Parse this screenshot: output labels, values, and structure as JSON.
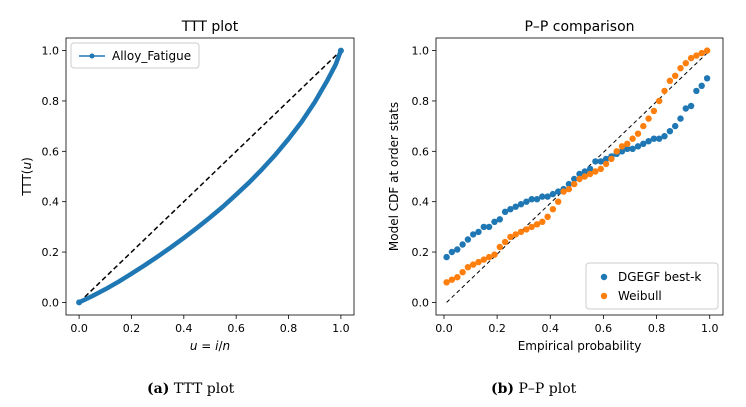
{
  "chart_data": [
    {
      "type": "line",
      "title": "TTT plot",
      "xlabel": "u = i/n",
      "ylabel": "TTT(u)",
      "xlim": [
        -0.05,
        1.05
      ],
      "ylim": [
        -0.05,
        1.05
      ],
      "xticks": [
        "0.0",
        "0.2",
        "0.4",
        "0.6",
        "0.8",
        "1.0"
      ],
      "yticks": [
        "0.0",
        "0.2",
        "0.4",
        "0.6",
        "0.8",
        "1.0"
      ],
      "legend": {
        "placement": "top-left",
        "entries": [
          "Alloy_Fatigue"
        ]
      },
      "series": [
        {
          "name": "Alloy_Fatigue",
          "color": "#1f77b4",
          "x": [
            0.0,
            0.05,
            0.1,
            0.15,
            0.2,
            0.25,
            0.3,
            0.35,
            0.4,
            0.45,
            0.5,
            0.55,
            0.6,
            0.65,
            0.7,
            0.75,
            0.8,
            0.85,
            0.9,
            0.95,
            0.98,
            1.0
          ],
          "y": [
            0.0,
            0.025,
            0.052,
            0.082,
            0.114,
            0.147,
            0.182,
            0.218,
            0.256,
            0.296,
            0.337,
            0.381,
            0.428,
            0.477,
            0.53,
            0.587,
            0.649,
            0.717,
            0.795,
            0.885,
            0.945,
            1.0
          ]
        },
        {
          "name": "reference",
          "style": "dashed",
          "color": "#000000",
          "x": [
            0,
            1
          ],
          "y": [
            0,
            1
          ]
        }
      ]
    },
    {
      "type": "scatter",
      "title": "P–P comparison",
      "xlabel": "Empirical probability",
      "ylabel": "Model CDF at order stats",
      "xlim": [
        -0.03,
        1.05
      ],
      "ylim": [
        -0.05,
        1.05
      ],
      "xticks": [
        "0.0",
        "0.2",
        "0.4",
        "0.6",
        "0.8",
        "1.0"
      ],
      "yticks": [
        "0.0",
        "0.2",
        "0.4",
        "0.6",
        "0.8",
        "1.0"
      ],
      "legend": {
        "placement": "bottom-right",
        "entries": [
          "DGEGF best-k",
          "Weibull"
        ]
      },
      "reference_line": {
        "x": [
          0.01,
          1.0
        ],
        "y": [
          0.0,
          1.0
        ],
        "style": "dashed"
      },
      "series": [
        {
          "name": "DGEGF best-k",
          "color": "#1f77b4",
          "x": [
            0.01,
            0.03,
            0.05,
            0.07,
            0.09,
            0.11,
            0.13,
            0.15,
            0.17,
            0.19,
            0.21,
            0.23,
            0.25,
            0.27,
            0.29,
            0.31,
            0.33,
            0.35,
            0.37,
            0.39,
            0.41,
            0.43,
            0.45,
            0.47,
            0.49,
            0.51,
            0.53,
            0.55,
            0.57,
            0.59,
            0.61,
            0.63,
            0.65,
            0.67,
            0.69,
            0.71,
            0.73,
            0.75,
            0.77,
            0.79,
            0.81,
            0.83,
            0.85,
            0.87,
            0.89,
            0.91,
            0.93,
            0.95,
            0.97,
            0.99
          ],
          "y": [
            0.18,
            0.2,
            0.21,
            0.23,
            0.25,
            0.27,
            0.28,
            0.3,
            0.3,
            0.32,
            0.33,
            0.36,
            0.37,
            0.38,
            0.39,
            0.4,
            0.41,
            0.41,
            0.42,
            0.42,
            0.43,
            0.44,
            0.45,
            0.47,
            0.49,
            0.51,
            0.52,
            0.53,
            0.56,
            0.56,
            0.57,
            0.58,
            0.59,
            0.6,
            0.61,
            0.61,
            0.62,
            0.63,
            0.64,
            0.65,
            0.65,
            0.66,
            0.68,
            0.7,
            0.73,
            0.77,
            0.78,
            0.84,
            0.86,
            0.89
          ]
        },
        {
          "name": "Weibull",
          "color": "#ff7f0e",
          "x": [
            0.01,
            0.03,
            0.05,
            0.07,
            0.09,
            0.11,
            0.13,
            0.15,
            0.17,
            0.19,
            0.21,
            0.23,
            0.25,
            0.27,
            0.29,
            0.31,
            0.33,
            0.35,
            0.37,
            0.39,
            0.41,
            0.43,
            0.45,
            0.47,
            0.49,
            0.51,
            0.53,
            0.55,
            0.57,
            0.59,
            0.61,
            0.63,
            0.65,
            0.67,
            0.69,
            0.71,
            0.73,
            0.75,
            0.77,
            0.79,
            0.81,
            0.83,
            0.85,
            0.87,
            0.89,
            0.91,
            0.93,
            0.95,
            0.97,
            0.99
          ],
          "y": [
            0.08,
            0.09,
            0.1,
            0.12,
            0.14,
            0.15,
            0.16,
            0.17,
            0.18,
            0.19,
            0.22,
            0.24,
            0.26,
            0.27,
            0.28,
            0.29,
            0.3,
            0.31,
            0.32,
            0.34,
            0.37,
            0.4,
            0.44,
            0.45,
            0.47,
            0.49,
            0.5,
            0.51,
            0.52,
            0.53,
            0.55,
            0.57,
            0.6,
            0.62,
            0.63,
            0.65,
            0.67,
            0.7,
            0.73,
            0.76,
            0.8,
            0.84,
            0.88,
            0.9,
            0.93,
            0.95,
            0.97,
            0.98,
            0.99,
            1.0
          ]
        }
      ]
    }
  ],
  "captions": [
    {
      "label": "(a)",
      "text": "TTT plot"
    },
    {
      "label": "(b)",
      "text": "P–P plot"
    }
  ]
}
